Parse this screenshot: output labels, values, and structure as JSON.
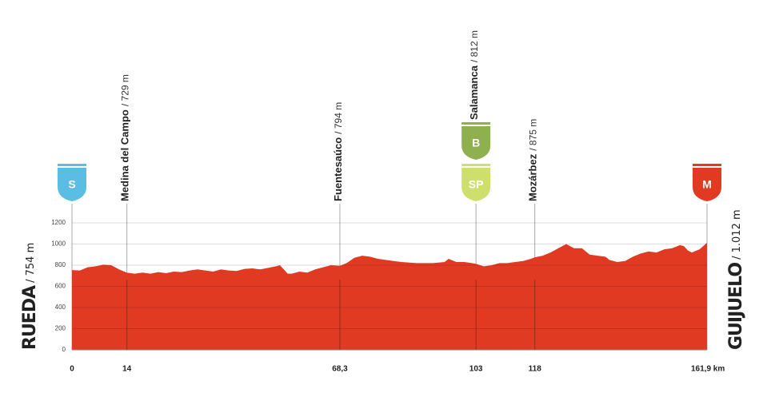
{
  "chart_data": {
    "type": "area",
    "color": "#e03a22",
    "x": [
      0,
      2,
      4,
      6,
      8,
      10,
      12,
      14,
      16,
      18,
      20,
      22,
      24,
      26,
      28,
      30,
      32,
      34,
      36,
      38,
      40,
      42,
      44,
      46,
      48,
      50,
      52,
      53,
      54,
      55,
      56,
      58,
      60,
      62,
      64,
      66,
      68.3,
      70,
      72,
      74,
      76,
      78,
      80,
      82,
      84,
      86,
      88,
      90,
      92,
      95,
      96,
      98,
      100,
      102,
      103,
      105,
      107,
      109,
      111,
      113,
      115,
      117,
      118,
      120,
      122,
      124,
      126,
      128,
      130,
      132,
      134,
      136,
      137,
      139,
      141,
      143,
      145,
      147,
      149,
      151,
      153,
      155,
      156,
      157,
      158,
      160,
      161.9
    ],
    "values": [
      754,
      750,
      780,
      790,
      805,
      800,
      760,
      729,
      720,
      730,
      720,
      735,
      725,
      740,
      735,
      750,
      760,
      750,
      740,
      760,
      750,
      745,
      765,
      770,
      760,
      775,
      790,
      800,
      760,
      720,
      720,
      740,
      730,
      760,
      780,
      800,
      794,
      820,
      870,
      890,
      880,
      860,
      850,
      840,
      830,
      825,
      820,
      820,
      820,
      830,
      860,
      830,
      830,
      820,
      812,
      790,
      800,
      820,
      820,
      830,
      840,
      860,
      875,
      890,
      920,
      960,
      1000,
      960,
      960,
      900,
      890,
      880,
      850,
      830,
      840,
      880,
      910,
      930,
      920,
      950,
      960,
      990,
      980,
      940,
      920,
      950,
      1012
    ],
    "xlim": [
      0,
      161.9
    ],
    "ylim": [
      0,
      1200
    ],
    "xticks": [
      0,
      14,
      {
        "value": 68.3,
        "label": "68,3"
      },
      103,
      118,
      {
        "value": 161.9,
        "label": "161,9 km"
      }
    ],
    "yticks": [
      0,
      200,
      400,
      600,
      800,
      1000,
      1200
    ],
    "xtick_names": [
      "RUEDA",
      "Medina del Campo",
      "Fuentesaúco",
      "Salamanca",
      "Mozárbez",
      "GUIJUELO"
    ],
    "xtick_altitudes": [
      "/ 754 m",
      "/ 729 m",
      "/ 794 m",
      "/ 812 m",
      "/ 875 m",
      "/ 1.012 m"
    ],
    "xtick_badges": [
      [
        "S"
      ],
      [],
      [],
      [
        "B",
        "SP"
      ],
      [],
      [
        "M"
      ]
    ],
    "badge_colors": {
      "S": "#5bbde4",
      "B": "#8fb04e",
      "SP": "#cfdf6e",
      "M": "#e03a22"
    },
    "grid": true
  }
}
